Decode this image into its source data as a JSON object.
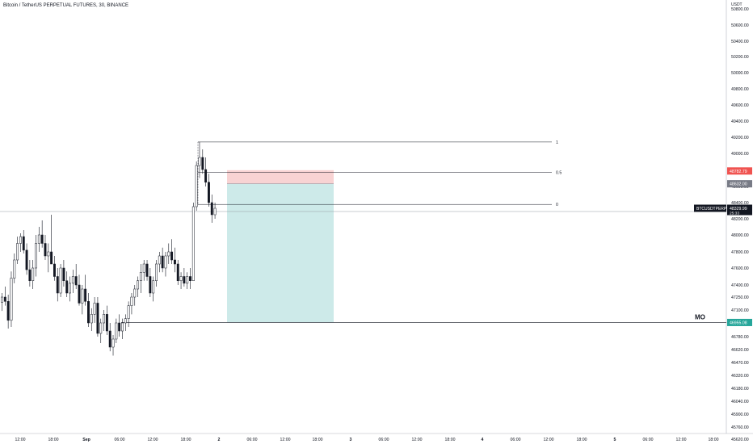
{
  "title": "Bitcoin / TetherUS PERPETUAL FUTURES, 30, BINANCE",
  "currency": "USDT",
  "yaxis_ticks": [
    "50800.00",
    "50600.00",
    "50400.00",
    "50200.00",
    "50000.00",
    "49800.00",
    "49600.00",
    "49400.00",
    "49200.00",
    "49000.00",
    "48800.00",
    "48600.00",
    "48400.00",
    "48200.00",
    "48000.00",
    "47800.00",
    "47600.00",
    "47400.00",
    "47250.00",
    "47100.00",
    "46950.00",
    "46780.00",
    "46620.00",
    "46470.00",
    "46320.00",
    "46180.00",
    "46040.00",
    "45900.00",
    "45760.00",
    "45620.00"
  ],
  "xaxis_ticks": [
    "12:00",
    "18:00",
    "Sep",
    "06:00",
    "12:00",
    "18:00",
    "2",
    "06:00",
    "12:00",
    "18:00",
    "3",
    "06:00",
    "12:00",
    "18:00",
    "4",
    "06:00",
    "12:00",
    "18:00",
    "5",
    "06:00",
    "12:00",
    "18:00"
  ],
  "symbol_tag": "BTCUSDTPERP",
  "last_price": "48329.99",
  "countdown": "25:33",
  "stop_price_label": "48782.79",
  "entry_price_label": "48632.00",
  "target_price_label": "46955.08",
  "annotation_text": "MO",
  "fib_levels": [
    {
      "label": "1",
      "price": 49141
    },
    {
      "label": "0.5",
      "price": 48768
    },
    {
      "label": "0",
      "price": 48378
    }
  ],
  "colors": {
    "up": "#ffffff",
    "down": "#131722",
    "stop_zone": "#f8d3d3",
    "target_zone": "#cdeae9",
    "stop_tag": "#f05350",
    "entry_tag": "#787b86",
    "target_tag": "#26a69a",
    "price_tag": "#131722"
  },
  "chart_data": {
    "type": "candlestick",
    "title": "Bitcoin / TetherUS PERPETUAL FUTURES, 30, BINANCE",
    "symbol": "BTCUSDTPERP",
    "timeframe": "30",
    "exchange": "BINANCE",
    "ylim": [
      45560,
      50900
    ],
    "last_price": 48329.99,
    "position": {
      "type": "short",
      "stop": 48782.79,
      "entry": 48632.0,
      "target": 46955.08
    },
    "horizontal_line": 48290,
    "candles": [
      [
        0,
        47190,
        47300,
        47090,
        47250
      ],
      [
        1,
        47250,
        47380,
        47150,
        47200
      ],
      [
        2,
        47200,
        47280,
        46880,
        46980
      ],
      [
        3,
        46980,
        47560,
        46900,
        47480
      ],
      [
        4,
        47480,
        47780,
        47420,
        47700
      ],
      [
        5,
        47700,
        47980,
        47650,
        47900
      ],
      [
        6,
        47900,
        48020,
        47800,
        47980
      ],
      [
        7,
        47980,
        48060,
        47780,
        47820
      ],
      [
        8,
        47820,
        47900,
        47520,
        47580
      ],
      [
        9,
        47580,
        47700,
        47380,
        47450
      ],
      [
        10,
        47450,
        47700,
        47350,
        47600
      ],
      [
        11,
        47600,
        48000,
        47500,
        47900
      ],
      [
        12,
        47900,
        48100,
        47800,
        48000
      ],
      [
        13,
        48000,
        48180,
        47850,
        47900
      ],
      [
        14,
        47900,
        48000,
        47700,
        47750
      ],
      [
        15,
        47750,
        47900,
        47550,
        47800
      ],
      [
        16,
        47800,
        48250,
        47700,
        47650
      ],
      [
        17,
        47650,
        47750,
        47450,
        47500
      ],
      [
        18,
        47500,
        47600,
        47200,
        47300
      ],
      [
        19,
        47300,
        47650,
        47250,
        47600
      ],
      [
        20,
        47600,
        47700,
        47380,
        47450
      ],
      [
        21,
        47450,
        47560,
        47250,
        47300
      ],
      [
        22,
        47300,
        47500,
        47200,
        47420
      ],
      [
        23,
        47420,
        47580,
        47300,
        47500
      ],
      [
        24,
        47500,
        47650,
        47350,
        47400
      ],
      [
        25,
        47400,
        47520,
        47150,
        47180
      ],
      [
        26,
        47180,
        47400,
        47050,
        47350
      ],
      [
        27,
        47350,
        47520,
        47150,
        47200
      ],
      [
        28,
        47200,
        47300,
        46900,
        46950
      ],
      [
        29,
        46950,
        47120,
        46850,
        47050
      ],
      [
        30,
        47050,
        47250,
        46950,
        47180
      ],
      [
        31,
        47180,
        47250,
        46780,
        46820
      ],
      [
        32,
        46820,
        47000,
        46700,
        46950
      ],
      [
        33,
        46950,
        47100,
        46850,
        47050
      ],
      [
        34,
        47050,
        47150,
        46800,
        46850
      ],
      [
        35,
        46850,
        46950,
        46600,
        46650
      ],
      [
        36,
        46650,
        46800,
        46550,
        46750
      ],
      [
        37,
        46750,
        47000,
        46700,
        46950
      ],
      [
        38,
        46950,
        47050,
        46780,
        46850
      ],
      [
        39,
        46850,
        47000,
        46750,
        46950
      ],
      [
        40,
        46950,
        47050,
        46850,
        47000
      ],
      [
        41,
        47000,
        47200,
        46900,
        47150
      ],
      [
        42,
        47150,
        47300,
        47050,
        47250
      ],
      [
        43,
        47250,
        47400,
        47150,
        47350
      ],
      [
        44,
        47350,
        47500,
        47250,
        47450
      ],
      [
        45,
        47450,
        47650,
        47300,
        47550
      ],
      [
        46,
        47550,
        47700,
        47450,
        47650
      ],
      [
        47,
        47650,
        47700,
        47450,
        47500
      ],
      [
        48,
        47500,
        47600,
        47250,
        47300
      ],
      [
        49,
        47300,
        47500,
        47200,
        47450
      ],
      [
        50,
        47450,
        47700,
        47380,
        47650
      ],
      [
        51,
        47650,
        47800,
        47550,
        47750
      ],
      [
        52,
        47750,
        47850,
        47550,
        47600
      ],
      [
        53,
        47600,
        47800,
        47500,
        47750
      ],
      [
        54,
        47750,
        47900,
        47650,
        47800
      ],
      [
        55,
        47800,
        47950,
        47650,
        47700
      ],
      [
        56,
        47700,
        47850,
        47550,
        47650
      ],
      [
        57,
        47650,
        47700,
        47400,
        47450
      ],
      [
        58,
        47450,
        47550,
        47350,
        47500
      ],
      [
        59,
        47500,
        47600,
        47380,
        47420
      ],
      [
        60,
        47420,
        47550,
        47350,
        47500
      ],
      [
        61,
        47500,
        47600,
        47350,
        47450
      ],
      [
        62,
        47450,
        48400,
        47450,
        48350
      ],
      [
        63,
        48350,
        48900,
        48300,
        48850
      ],
      [
        64,
        48850,
        49141,
        48700,
        48950
      ],
      [
        65,
        48950,
        49050,
        48750,
        48800
      ],
      [
        66,
        48800,
        48950,
        48600,
        48650
      ],
      [
        67,
        48650,
        48750,
        48350,
        48400
      ],
      [
        68,
        48400,
        48500,
        48150,
        48250
      ],
      [
        69,
        48250,
        48400,
        48200,
        48330
      ]
    ]
  }
}
